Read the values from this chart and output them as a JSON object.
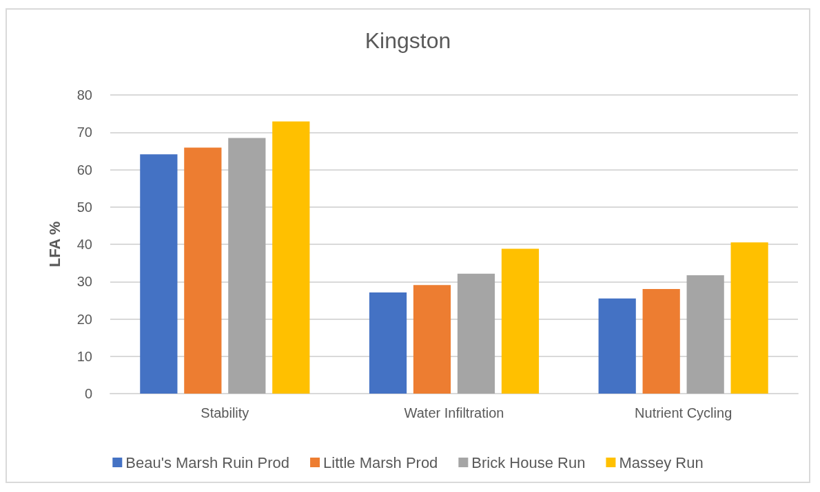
{
  "chart_data": {
    "type": "bar",
    "title": "Kingston",
    "ylabel": "LFA %",
    "categories": [
      "Stability",
      "Water Infiltration",
      "Nutrient Cycling"
    ],
    "series": [
      {
        "name": "Beau's Marsh Ruin Prod",
        "color": "#4472c4",
        "values": [
          64.1,
          27.1,
          25.5
        ]
      },
      {
        "name": "Little Marsh Prod",
        "color": "#ed7d31",
        "values": [
          65.9,
          29.1,
          28.0
        ]
      },
      {
        "name": "Brick House Run",
        "color": "#a5a5a5",
        "values": [
          68.5,
          32.1,
          31.7
        ]
      },
      {
        "name": "Massey Run",
        "color": "#ffc000",
        "values": [
          72.9,
          38.8,
          40.5
        ]
      }
    ],
    "ylim": [
      0,
      80
    ],
    "yticks": [
      0,
      10,
      20,
      30,
      40,
      50,
      60,
      70,
      80
    ],
    "grid": "y",
    "legend": "bottom"
  }
}
